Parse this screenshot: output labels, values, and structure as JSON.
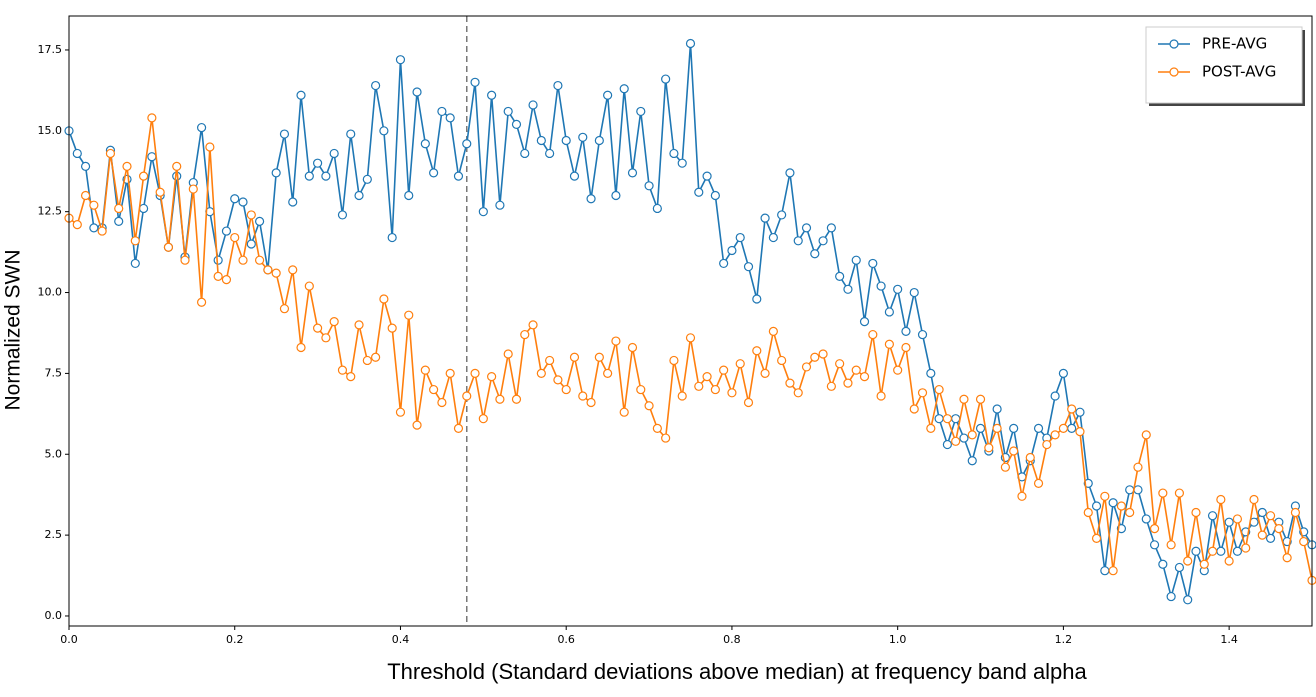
{
  "chart_data": {
    "type": "line",
    "xlabel": "Threshold (Standard deviations above median) at frequency band alpha",
    "ylabel": "Normalized SWN",
    "x": [
      0,
      0.01,
      0.02,
      0.03,
      0.04,
      0.05,
      0.06,
      0.07,
      0.08,
      0.09,
      0.1,
      0.11,
      0.12,
      0.13,
      0.14,
      0.15,
      0.16,
      0.17,
      0.18,
      0.19,
      0.2,
      0.21,
      0.22,
      0.23,
      0.24,
      0.25,
      0.26,
      0.27,
      0.28,
      0.29,
      0.3,
      0.31,
      0.32,
      0.33,
      0.34,
      0.35,
      0.36,
      0.37,
      0.38,
      0.39,
      0.4,
      0.41,
      0.42,
      0.43,
      0.44,
      0.45,
      0.46,
      0.47,
      0.48,
      0.49,
      0.5,
      0.51,
      0.52,
      0.53,
      0.54,
      0.55,
      0.56,
      0.57,
      0.58,
      0.59,
      0.6,
      0.61,
      0.62,
      0.63,
      0.64,
      0.65,
      0.66,
      0.67,
      0.68,
      0.69,
      0.7,
      0.71,
      0.72,
      0.73,
      0.74,
      0.75,
      0.76,
      0.77,
      0.78,
      0.79,
      0.8,
      0.81,
      0.82,
      0.83,
      0.84,
      0.85,
      0.86,
      0.87,
      0.88,
      0.89,
      0.9,
      0.91,
      0.92,
      0.93,
      0.94,
      0.95,
      0.96,
      0.97,
      0.98,
      0.99,
      1.0,
      1.01,
      1.02,
      1.03,
      1.04,
      1.05,
      1.06,
      1.07,
      1.08,
      1.09,
      1.1,
      1.11,
      1.12,
      1.13,
      1.14,
      1.15,
      1.16,
      1.17,
      1.18,
      1.19,
      1.2,
      1.21,
      1.22,
      1.23,
      1.24,
      1.25,
      1.26,
      1.27,
      1.28,
      1.29,
      1.3,
      1.31,
      1.32,
      1.33,
      1.34,
      1.35,
      1.36,
      1.37,
      1.38,
      1.39,
      1.4,
      1.41,
      1.42,
      1.43,
      1.44,
      1.45,
      1.46,
      1.47,
      1.48,
      1.49,
      1.5
    ],
    "series": [
      {
        "name": "PRE-AVG",
        "color": "#1f77b4",
        "values": [
          15.0,
          14.3,
          13.9,
          12.0,
          12.0,
          14.4,
          12.2,
          13.5,
          10.9,
          12.6,
          14.2,
          13.0,
          11.4,
          13.6,
          11.1,
          13.4,
          15.1,
          12.5,
          11.0,
          11.9,
          12.9,
          12.8,
          11.5,
          12.2,
          10.7,
          13.7,
          14.9,
          12.8,
          16.1,
          13.6,
          14.0,
          13.6,
          14.3,
          12.4,
          14.9,
          13.0,
          13.5,
          16.4,
          15.0,
          11.7,
          17.2,
          13.0,
          16.2,
          14.6,
          13.7,
          15.6,
          15.4,
          13.6,
          14.6,
          16.5,
          12.5,
          16.1,
          12.7,
          15.6,
          15.2,
          14.3,
          15.8,
          14.7,
          14.3,
          16.4,
          14.7,
          13.6,
          14.8,
          12.9,
          14.7,
          16.1,
          13.0,
          16.3,
          13.7,
          15.6,
          13.3,
          12.6,
          16.6,
          14.3,
          14.0,
          17.7,
          13.1,
          13.6,
          13.0,
          10.9,
          11.3,
          11.7,
          10.8,
          9.8,
          12.3,
          11.7,
          12.4,
          13.7,
          11.6,
          12.0,
          11.2,
          11.6,
          12.0,
          10.5,
          10.1,
          11.0,
          9.1,
          10.9,
          10.2,
          9.4,
          10.1,
          8.8,
          10.0,
          8.7,
          7.5,
          6.1,
          5.3,
          6.1,
          5.5,
          4.8,
          5.8,
          5.1,
          6.4,
          4.9,
          5.8,
          4.3,
          4.8,
          5.8,
          5.5,
          6.8,
          7.5,
          5.8,
          6.3,
          4.1,
          3.4,
          1.4,
          3.5,
          2.7,
          3.9,
          3.9,
          3.0,
          2.2,
          1.6,
          0.6,
          1.5,
          0.5,
          2.0,
          1.4,
          3.1,
          2.0,
          2.9,
          2.0,
          2.6,
          2.9,
          3.2,
          2.4,
          2.9,
          2.3,
          3.4,
          2.6,
          2.2
        ]
      },
      {
        "name": "POST-AVG",
        "color": "#ff7f0e",
        "values": [
          12.3,
          12.1,
          13.0,
          12.7,
          11.9,
          14.3,
          12.6,
          13.9,
          11.6,
          13.6,
          15.4,
          13.1,
          11.4,
          13.9,
          11.0,
          13.2,
          9.7,
          14.5,
          10.5,
          10.4,
          11.7,
          11.0,
          12.4,
          11.0,
          10.7,
          10.6,
          9.5,
          10.7,
          8.3,
          10.2,
          8.9,
          8.6,
          9.1,
          7.6,
          7.4,
          9.0,
          7.9,
          8.0,
          9.8,
          8.9,
          6.3,
          9.3,
          5.9,
          7.6,
          7.0,
          6.6,
          7.5,
          5.8,
          6.8,
          7.5,
          6.1,
          7.4,
          6.7,
          8.1,
          6.7,
          8.7,
          9.0,
          7.5,
          7.9,
          7.3,
          7.0,
          8.0,
          6.8,
          6.6,
          8.0,
          7.5,
          8.5,
          6.3,
          8.3,
          7.0,
          6.5,
          5.8,
          5.5,
          7.9,
          6.8,
          8.6,
          7.1,
          7.4,
          7.0,
          7.6,
          6.9,
          7.8,
          6.6,
          8.2,
          7.5,
          8.8,
          7.9,
          7.2,
          6.9,
          7.7,
          8.0,
          8.1,
          7.1,
          7.8,
          7.2,
          7.6,
          7.4,
          8.7,
          6.8,
          8.4,
          7.6,
          8.3,
          6.4,
          6.9,
          5.8,
          7.0,
          6.1,
          5.4,
          6.7,
          5.6,
          6.7,
          5.2,
          5.8,
          4.6,
          5.1,
          3.7,
          4.9,
          4.1,
          5.3,
          5.6,
          5.8,
          6.4,
          5.7,
          3.2,
          2.4,
          3.7,
          1.4,
          3.4,
          3.2,
          4.6,
          5.6,
          2.7,
          3.8,
          2.2,
          3.8,
          1.7,
          3.2,
          1.6,
          2.0,
          3.6,
          1.7,
          3.0,
          2.1,
          3.6,
          2.5,
          3.1,
          2.7,
          1.8,
          3.2,
          2.3,
          1.1
        ]
      }
    ],
    "xlim": [
      0,
      1.5
    ],
    "ylim": [
      -0.31,
      18.55
    ],
    "xticks": [
      {
        "value": 0,
        "label": "0.0"
      },
      0.2,
      0.4,
      0.6,
      0.8,
      {
        "value": 1,
        "label": "1.0"
      },
      1.2,
      1.4
    ],
    "yticks": [
      {
        "value": 0,
        "label": "0.0"
      },
      2.5,
      {
        "value": 5,
        "label": "5.0"
      },
      7.5,
      {
        "value": 10,
        "label": "10.0"
      },
      12.5,
      {
        "value": 15,
        "label": "15.0"
      },
      17.5
    ],
    "vline": 0.48,
    "legend": "upper right",
    "grid": false
  }
}
